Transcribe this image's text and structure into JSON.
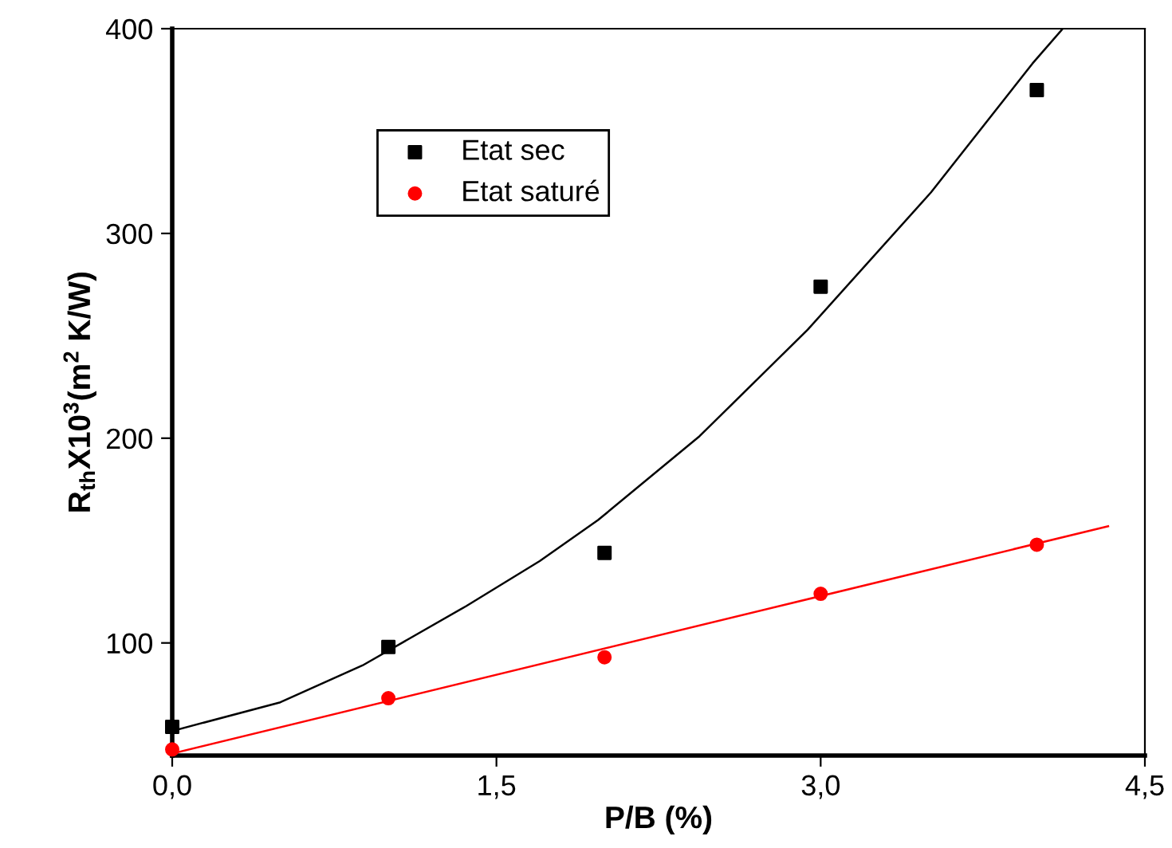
{
  "chart_data": {
    "type": "scatter",
    "xlabel": "P/B (%)",
    "ylabel": "R$_{th}$X10$^{3}$(m$^{2}$ K/W)",
    "xlim": [
      0,
      4.5
    ],
    "ylim": [
      45,
      400
    ],
    "xticks": [
      {
        "value": 0,
        "label": "0,0"
      },
      {
        "value": 1.5,
        "label": "1,5"
      },
      {
        "value": 3,
        "label": "3,0"
      },
      {
        "value": 4.5,
        "label": "4,5"
      }
    ],
    "yticks": [
      100,
      200,
      300,
      400
    ],
    "grid": false,
    "legend": "top",
    "tick_labels": true,
    "series": [
      {
        "name": "Etat sec",
        "color": "#000000",
        "marker": "square",
        "x": [
          0,
          1,
          2,
          3,
          4
        ],
        "values": [
          59,
          98,
          144,
          274,
          370
        ]
      },
      {
        "name": "Etat saturé",
        "color": "#ff0000",
        "marker": "circle",
        "x": [
          0,
          1,
          2,
          3,
          4
        ],
        "values": [
          48,
          73,
          93,
          124,
          148
        ]
      },
      {
        "type": "line",
        "color": "#000000",
        "marker": "none",
        "x": [
          0,
          0.5,
          0.88,
          1.36,
          1.7,
          1.97,
          2.44,
          2.94,
          3.51,
          3.98,
          4.12
        ],
        "values": [
          57,
          71,
          89,
          118,
          140,
          160,
          201,
          253,
          320,
          383,
          400
        ]
      },
      {
        "type": "line",
        "color": "#ff0000",
        "marker": "none",
        "x": [
          0,
          4.33
        ],
        "values": [
          46,
          157
        ]
      }
    ]
  }
}
